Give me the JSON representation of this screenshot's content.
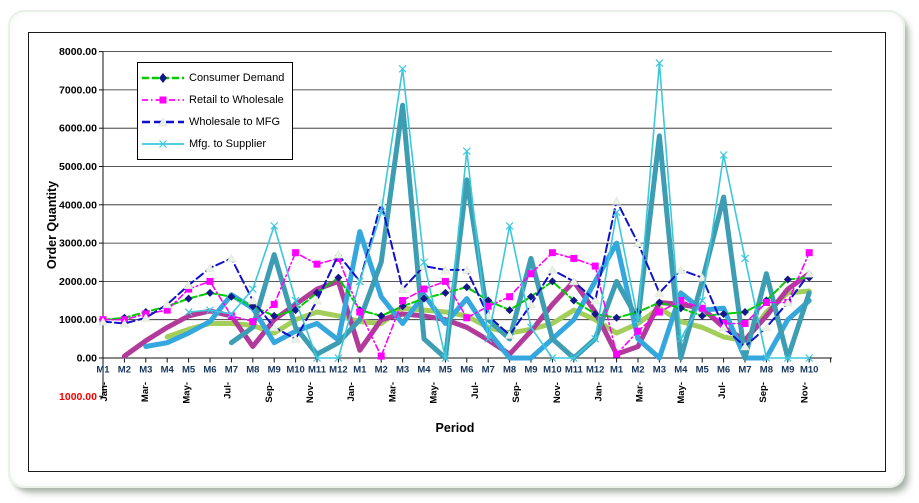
{
  "window": {
    "background": "#ffffff",
    "frame_style": "rounded-light-panel"
  },
  "chart_data": {
    "type": "line",
    "title": "",
    "xlabel": "Period",
    "ylabel": "Order Quantity",
    "ylim": [
      -1000,
      8000
    ],
    "y_tick_step": 1000,
    "grid": "horizontal",
    "legend_position": "top-left-inside",
    "y_ticks": [
      {
        "value": 8000,
        "label": "8000.00",
        "color": "#000000"
      },
      {
        "value": 7000,
        "label": "7000.00",
        "color": "#000000"
      },
      {
        "value": 6000,
        "label": "6000.00",
        "color": "#000000"
      },
      {
        "value": 5000,
        "label": "5000.00",
        "color": "#000000"
      },
      {
        "value": 4000,
        "label": "4000.00",
        "color": "#000000"
      },
      {
        "value": 3000,
        "label": "3000.00",
        "color": "#000000"
      },
      {
        "value": 2000,
        "label": "2000.00",
        "color": "#000000"
      },
      {
        "value": 1000,
        "label": "1000.00",
        "color": "#000000"
      },
      {
        "value": 0,
        "label": "0.00",
        "color": "#000000"
      },
      {
        "value": -1000,
        "label": "1000.00",
        "color": "#FF0000"
      }
    ],
    "categories": [
      "M1",
      "M2",
      "M3",
      "M4",
      "M5",
      "M6",
      "M7",
      "M8",
      "M9",
      "M10",
      "M11",
      "M12",
      "M1",
      "M2",
      "M3",
      "M4",
      "M5",
      "M6",
      "M7",
      "M8",
      "M9",
      "M10",
      "M11",
      "M12",
      "M1",
      "M2",
      "M3",
      "M4",
      "M5",
      "M6",
      "M7",
      "M8",
      "M9",
      "M10"
    ],
    "month_labels": [
      "Jan-",
      "Mar-",
      "May-",
      "Jul-",
      "Sep-",
      "Nov-",
      "Jan-",
      "Mar-",
      "May-",
      "Jul-",
      "Sep-",
      "Nov-",
      "Jan-",
      "Mar-",
      "May-",
      "Jul-",
      "Sep-",
      "Nov-"
    ],
    "series": [
      {
        "id": "smoothed-consumer",
        "name": "",
        "in_legend": false,
        "color": "#A3CE5A",
        "width": 5,
        "dash": null,
        "marker": null,
        "marker_color": null,
        "values": [
          null,
          null,
          null,
          550,
          750,
          900,
          900,
          850,
          650,
          1000,
          1200,
          1100,
          950,
          900,
          1300,
          1250,
          1200,
          1100,
          800,
          650,
          750,
          900,
          1250,
          1000,
          650,
          900,
          1300,
          950,
          800,
          550,
          450,
          1200,
          1700,
          1750
        ]
      },
      {
        "id": "smoothed-retail",
        "name": "",
        "in_legend": false,
        "color": "#B13A9B",
        "width": 5,
        "dash": null,
        "marker": null,
        "marker_color": null,
        "values": [
          null,
          50,
          450,
          800,
          1100,
          1230,
          1100,
          300,
          1000,
          1400,
          1800,
          2000,
          200,
          1000,
          1150,
          1100,
          1000,
          800,
          470,
          100,
          700,
          1400,
          2000,
          1200,
          100,
          300,
          1450,
          1400,
          1300,
          800,
          470,
          1100,
          1800,
          2200
        ]
      },
      {
        "id": "smoothed-wholesale",
        "name": "",
        "in_legend": false,
        "color": "#33A7DE",
        "width": 5,
        "dash": null,
        "marker": null,
        "marker_color": null,
        "values": [
          null,
          null,
          300,
          400,
          650,
          950,
          1650,
          1300,
          400,
          700,
          900,
          470,
          3300,
          1600,
          900,
          1650,
          900,
          1550,
          700,
          0,
          0,
          500,
          1000,
          2000,
          3000,
          500,
          0,
          1700,
          1250,
          1300,
          0,
          0,
          1000,
          1500
        ]
      },
      {
        "id": "smoothed-mfg",
        "name": "",
        "in_legend": false,
        "color": "#3D9DB3",
        "width": 5,
        "dash": null,
        "marker": null,
        "marker_color": null,
        "values": [
          null,
          null,
          null,
          null,
          null,
          null,
          400,
          800,
          2700,
          800,
          100,
          400,
          1000,
          2500,
          6600,
          500,
          0,
          4650,
          1000,
          500,
          2600,
          500,
          0,
          500,
          2000,
          1000,
          5800,
          0,
          2000,
          4200,
          0,
          2200,
          0,
          1700
        ]
      },
      {
        "id": "consumer-demand",
        "name": "Consumer Demand",
        "in_legend": true,
        "color": "#00CC00",
        "width": 2,
        "dash": "7,3",
        "marker": "diamond",
        "marker_color": "#16168C",
        "values": [
          1000,
          1050,
          1200,
          1350,
          1550,
          1700,
          1600,
          1350,
          1100,
          1250,
          1700,
          2100,
          1250,
          1100,
          1350,
          1550,
          1700,
          1850,
          1500,
          1250,
          1600,
          2000,
          1500,
          1150,
          1050,
          1200,
          1450,
          1300,
          1100,
          1150,
          1200,
          1500,
          2050,
          2100
        ]
      },
      {
        "id": "retail-to-wholesale",
        "name": "Retail to Wholesale",
        "in_legend": true,
        "color": "#FF00FF",
        "width": 1.6,
        "dash": "6,3,1.5,3",
        "marker": "square",
        "marker_color": "#FF00FF",
        "values": [
          1000,
          1000,
          1150,
          1250,
          1800,
          2000,
          1100,
          950,
          1400,
          2750,
          2450,
          2600,
          1200,
          50,
          1500,
          1800,
          2000,
          1050,
          1350,
          1600,
          2200,
          2750,
          2600,
          2400,
          100,
          700,
          1200,
          1500,
          1300,
          900,
          900,
          1450,
          1450,
          2750
        ]
      },
      {
        "id": "wholesale-to-mfg",
        "name": "Wholesale to MFG",
        "in_legend": true,
        "color": "#1111CC",
        "width": 2,
        "dash": "8,4",
        "marker": "triangle",
        "marker_color": "#E9F1E5",
        "values": [
          950,
          900,
          1050,
          1400,
          1900,
          2350,
          2600,
          1500,
          800,
          500,
          1500,
          2700,
          2000,
          4050,
          1800,
          2400,
          2300,
          2300,
          1100,
          600,
          1400,
          2300,
          2000,
          1500,
          4100,
          3000,
          1700,
          2300,
          2100,
          800,
          300,
          800,
          1450,
          2200
        ]
      },
      {
        "id": "mfg-to-supplier",
        "name": "Mfg. to Supplier",
        "in_legend": true,
        "color": "#3CC8DC",
        "width": 1.6,
        "dash": null,
        "marker": "x",
        "marker_color": "#3CC8DC",
        "values": [
          null,
          null,
          null,
          null,
          1200,
          1250,
          1150,
          1800,
          3450,
          1500,
          0,
          0,
          2000,
          3800,
          7550,
          2500,
          0,
          5400,
          500,
          3450,
          800,
          0,
          0,
          500,
          3800,
          1000,
          7700,
          500,
          1500,
          5300,
          2600,
          0,
          0,
          0
        ]
      }
    ]
  }
}
